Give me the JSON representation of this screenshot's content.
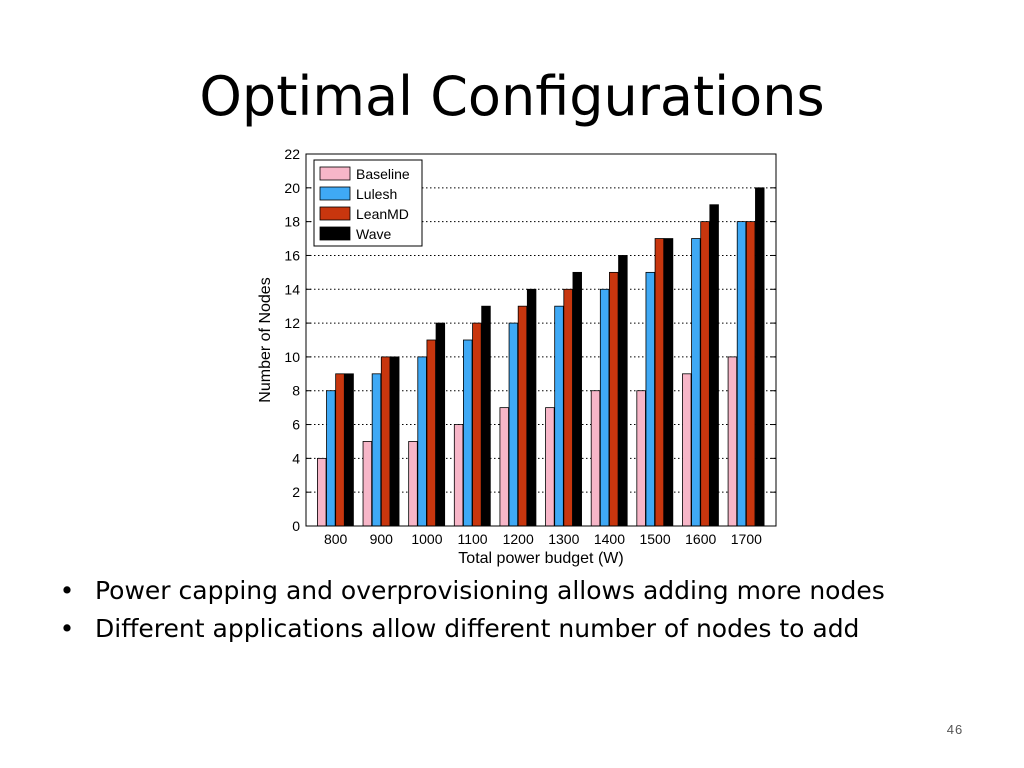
{
  "slide": {
    "title": "Optimal Configurations",
    "bullets": [
      "Power capping and overprovisioning allows adding more nodes",
      "Different applications allow different number of nodes to add"
    ],
    "bullet_glyph": "•",
    "page_number": "46"
  },
  "chart_data": {
    "type": "bar",
    "title": "",
    "xlabel": "Total power budget (W)",
    "ylabel": "Number of Nodes",
    "ylim": [
      0,
      22
    ],
    "yticks": [
      0,
      2,
      4,
      6,
      8,
      10,
      12,
      14,
      16,
      18,
      20,
      22
    ],
    "grid": true,
    "legend_position": "top-left",
    "categories": [
      "800",
      "900",
      "1000",
      "1100",
      "1200",
      "1300",
      "1400",
      "1500",
      "1600",
      "1700"
    ],
    "series": [
      {
        "name": "Baseline",
        "color": "#f7b6c8",
        "values": [
          4,
          5,
          5,
          6,
          7,
          7,
          8,
          8,
          9,
          10
        ]
      },
      {
        "name": "Lulesh",
        "color": "#3fa9f5",
        "values": [
          8,
          9,
          10,
          11,
          12,
          13,
          14,
          15,
          17,
          18
        ]
      },
      {
        "name": "LeanMD",
        "color": "#c8360e",
        "values": [
          9,
          10,
          11,
          12,
          13,
          14,
          15,
          17,
          18,
          18
        ]
      },
      {
        "name": "Wave",
        "color": "#000000",
        "values": [
          9,
          10,
          12,
          13,
          14,
          15,
          16,
          17,
          19,
          20
        ]
      }
    ]
  }
}
